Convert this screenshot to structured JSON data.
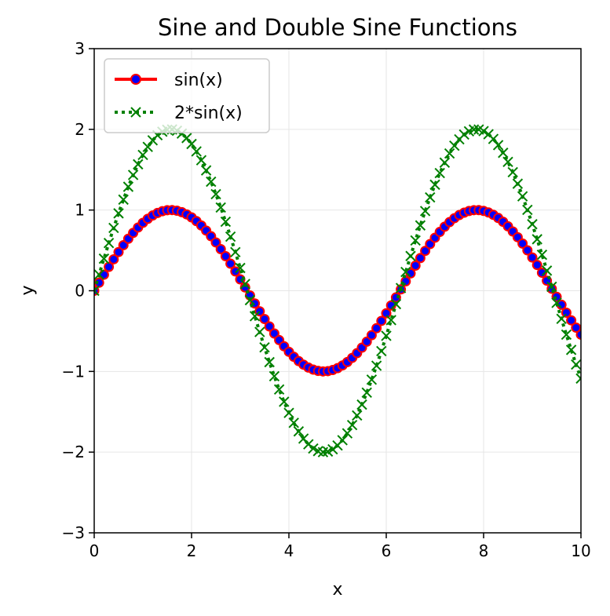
{
  "chart_data": {
    "type": "line",
    "title": "Sine and Double Sine Functions",
    "xlabel": "x",
    "ylabel": "y",
    "xlim": [
      0,
      10
    ],
    "ylim": [
      -3,
      3
    ],
    "xticks": [
      0,
      2,
      4,
      6,
      8,
      10
    ],
    "yticks": [
      -3,
      -2,
      -1,
      0,
      1,
      2,
      3
    ],
    "grid": true,
    "legend_position": "top-left",
    "x": [
      0.0,
      0.1,
      0.2,
      0.3,
      0.4,
      0.5,
      0.6,
      0.7,
      0.8,
      0.9,
      1.0,
      1.1,
      1.2,
      1.3,
      1.4,
      1.5,
      1.6,
      1.7,
      1.8,
      1.9,
      2.0,
      2.1,
      2.2,
      2.3,
      2.4,
      2.5,
      2.6,
      2.7,
      2.8,
      2.9,
      3.0,
      3.1,
      3.2,
      3.3,
      3.4,
      3.5,
      3.6,
      3.7,
      3.8,
      3.9,
      4.0,
      4.1,
      4.2,
      4.3,
      4.4,
      4.5,
      4.6,
      4.7,
      4.8,
      4.9,
      5.0,
      5.1,
      5.2,
      5.3,
      5.4,
      5.5,
      5.6,
      5.7,
      5.8,
      5.9,
      6.0,
      6.1,
      6.2,
      6.3,
      6.4,
      6.5,
      6.6,
      6.7,
      6.8,
      6.9,
      7.0,
      7.1,
      7.2,
      7.3,
      7.4,
      7.5,
      7.6,
      7.7,
      7.8,
      7.9,
      8.0,
      8.1,
      8.2,
      8.3,
      8.4,
      8.5,
      8.6,
      8.7,
      8.8,
      8.9,
      9.0,
      9.1,
      9.2,
      9.3,
      9.4,
      9.5,
      9.6,
      9.7,
      9.8,
      9.9,
      10.0
    ],
    "series": [
      {
        "name": "sin(x)",
        "line_color": "#ff0000",
        "marker": "circle",
        "marker_face": "#0000ff",
        "marker_edge": "#ff0000",
        "line_style": "solid",
        "values": [
          0.0,
          0.0998,
          0.1987,
          0.2955,
          0.3894,
          0.4794,
          0.5646,
          0.6442,
          0.7174,
          0.7833,
          0.8415,
          0.8912,
          0.932,
          0.9636,
          0.9854,
          0.9975,
          0.9996,
          0.9917,
          0.9738,
          0.9463,
          0.9093,
          0.8632,
          0.8085,
          0.7457,
          0.6755,
          0.5985,
          0.5155,
          0.4274,
          0.335,
          0.2392,
          0.1411,
          0.0416,
          -0.0584,
          -0.1577,
          -0.2555,
          -0.3508,
          -0.4425,
          -0.5298,
          -0.6119,
          -0.6878,
          -0.7568,
          -0.8183,
          -0.8716,
          -0.9162,
          -0.9516,
          -0.9775,
          -0.9937,
          -0.9999,
          -0.9962,
          -0.9825,
          -0.9589,
          -0.9258,
          -0.8835,
          -0.8323,
          -0.7728,
          -0.7055,
          -0.6313,
          -0.5507,
          -0.4646,
          -0.3739,
          -0.2794,
          -0.1822,
          -0.0831,
          0.0168,
          0.1165,
          0.2151,
          0.3115,
          0.4048,
          0.494,
          0.5784,
          0.657,
          0.729,
          0.7937,
          0.8504,
          0.8987,
          0.938,
          0.9679,
          0.9882,
          0.9985,
          0.9989,
          0.9894,
          0.9699,
          0.9407,
          0.9022,
          0.8546,
          0.7985,
          0.7344,
          0.663,
          0.5849,
          0.501,
          0.4121,
          0.3191,
          0.2229,
          0.1245,
          0.0248,
          -0.0752,
          -0.1743,
          -0.2718,
          -0.3665,
          -0.4575,
          -0.544
        ]
      },
      {
        "name": "2*sin(x)",
        "line_color": "#008000",
        "marker": "x",
        "line_style": "dotted",
        "values": [
          0.0,
          0.1997,
          0.3973,
          0.591,
          0.7788,
          0.9589,
          1.1293,
          1.2884,
          1.4347,
          1.5667,
          1.6829,
          1.7824,
          1.8641,
          1.9271,
          1.9709,
          1.995,
          1.9991,
          1.9833,
          1.9477,
          1.8926,
          1.8186,
          1.7264,
          1.617,
          1.4914,
          1.3509,
          1.1969,
          1.031,
          0.8548,
          0.67,
          0.4785,
          0.2822,
          0.0831,
          -0.1167,
          -0.3155,
          -0.5111,
          -0.7016,
          -0.885,
          -1.0596,
          -1.2237,
          -1.3756,
          -1.5136,
          -1.6365,
          -1.7432,
          -1.8324,
          -1.9032,
          -1.9551,
          -1.9874,
          -1.9998,
          -1.9923,
          -1.9649,
          -1.9178,
          -1.8516,
          -1.767,
          -1.6646,
          -1.5455,
          -1.4111,
          -1.2625,
          -1.1015,
          -0.9293,
          -0.7478,
          -0.5588,
          -0.3643,
          -0.1662,
          0.0336,
          0.233,
          0.4302,
          0.623,
          0.8096,
          0.988,
          1.1567,
          1.314,
          1.458,
          1.5874,
          1.7009,
          1.7974,
          1.876,
          1.9358,
          1.9763,
          1.997,
          1.9977,
          1.9787,
          1.9398,
          1.8813,
          1.8043,
          1.7091,
          1.5969,
          1.4688,
          1.326,
          1.1698,
          1.0019,
          0.8242,
          0.6382,
          0.4458,
          0.249,
          0.0496,
          -0.1504,
          -0.3486,
          -0.5436,
          -0.733,
          -0.915,
          -1.088
        ]
      }
    ]
  }
}
